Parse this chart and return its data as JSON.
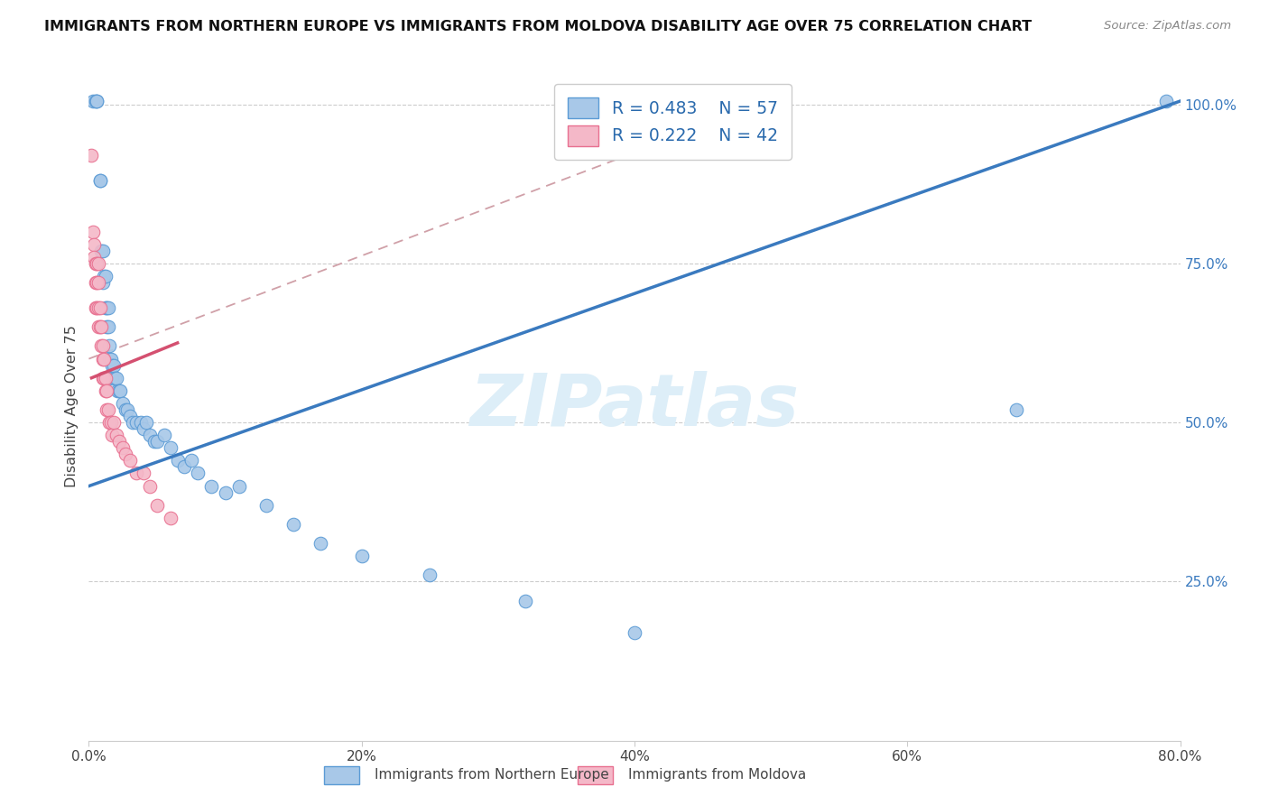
{
  "title": "IMMIGRANTS FROM NORTHERN EUROPE VS IMMIGRANTS FROM MOLDOVA DISABILITY AGE OVER 75 CORRELATION CHART",
  "source": "Source: ZipAtlas.com",
  "ylabel": "Disability Age Over 75",
  "legend_blue_r": "0.483",
  "legend_blue_n": "57",
  "legend_pink_r": "0.222",
  "legend_pink_n": "42",
  "blue_color": "#a8c8e8",
  "pink_color": "#f4b8c8",
  "blue_edge_color": "#5b9bd5",
  "pink_edge_color": "#e87090",
  "blue_line_color": "#3a7abf",
  "pink_line_color": "#d45070",
  "dashed_line_color": "#d0a0a8",
  "watermark_color": "#ddeef8",
  "xmin": 0.0,
  "xmax": 0.8,
  "ymin": 0.0,
  "ymax": 1.05,
  "blue_scatter_x": [
    0.003,
    0.005,
    0.006,
    0.006,
    0.008,
    0.008,
    0.009,
    0.01,
    0.01,
    0.011,
    0.012,
    0.012,
    0.013,
    0.013,
    0.014,
    0.014,
    0.015,
    0.015,
    0.016,
    0.017,
    0.017,
    0.018,
    0.019,
    0.02,
    0.021,
    0.022,
    0.023,
    0.025,
    0.027,
    0.028,
    0.03,
    0.032,
    0.035,
    0.038,
    0.04,
    0.042,
    0.045,
    0.048,
    0.05,
    0.055,
    0.06,
    0.065,
    0.07,
    0.075,
    0.08,
    0.09,
    0.1,
    0.11,
    0.13,
    0.15,
    0.17,
    0.2,
    0.25,
    0.32,
    0.4,
    0.68,
    0.79
  ],
  "blue_scatter_y": [
    1.005,
    1.005,
    1.005,
    1.005,
    0.88,
    0.88,
    0.77,
    0.77,
    0.72,
    0.73,
    0.73,
    0.68,
    0.68,
    0.65,
    0.68,
    0.65,
    0.62,
    0.6,
    0.6,
    0.59,
    0.57,
    0.59,
    0.57,
    0.57,
    0.55,
    0.55,
    0.55,
    0.53,
    0.52,
    0.52,
    0.51,
    0.5,
    0.5,
    0.5,
    0.49,
    0.5,
    0.48,
    0.47,
    0.47,
    0.48,
    0.46,
    0.44,
    0.43,
    0.44,
    0.42,
    0.4,
    0.39,
    0.4,
    0.37,
    0.34,
    0.31,
    0.29,
    0.26,
    0.22,
    0.17,
    0.52,
    1.005
  ],
  "pink_scatter_x": [
    0.002,
    0.003,
    0.004,
    0.004,
    0.005,
    0.005,
    0.005,
    0.006,
    0.006,
    0.006,
    0.007,
    0.007,
    0.007,
    0.007,
    0.008,
    0.008,
    0.009,
    0.009,
    0.01,
    0.01,
    0.01,
    0.011,
    0.011,
    0.012,
    0.012,
    0.013,
    0.013,
    0.014,
    0.015,
    0.016,
    0.017,
    0.018,
    0.02,
    0.022,
    0.025,
    0.027,
    0.03,
    0.035,
    0.04,
    0.045,
    0.05,
    0.06
  ],
  "pink_scatter_y": [
    0.92,
    0.8,
    0.78,
    0.76,
    0.75,
    0.72,
    0.68,
    0.75,
    0.72,
    0.68,
    0.75,
    0.72,
    0.68,
    0.65,
    0.68,
    0.65,
    0.65,
    0.62,
    0.62,
    0.6,
    0.57,
    0.6,
    0.57,
    0.57,
    0.55,
    0.55,
    0.52,
    0.52,
    0.5,
    0.5,
    0.48,
    0.5,
    0.48,
    0.47,
    0.46,
    0.45,
    0.44,
    0.42,
    0.42,
    0.4,
    0.37,
    0.35
  ],
  "blue_line_x0": 0.0,
  "blue_line_y0": 0.4,
  "blue_line_x1": 0.8,
  "blue_line_y1": 1.005,
  "pink_line_x0": 0.002,
  "pink_line_y0": 0.57,
  "pink_line_x1": 0.065,
  "pink_line_y1": 0.625,
  "dash_line_x0": 0.0,
  "dash_line_y0": 0.6,
  "dash_line_x1": 0.5,
  "dash_line_y1": 1.005
}
